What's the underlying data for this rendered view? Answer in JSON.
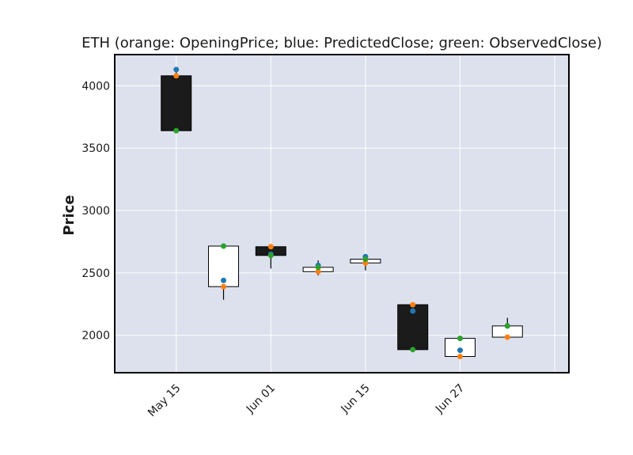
{
  "chart_data": {
    "type": "candlestick",
    "title": "ETH (orange: OpeningPrice; blue: PredictedClose; green: ObservedClose)",
    "ylabel": "Price",
    "xlabel": "",
    "ylim": [
      1700,
      4250
    ],
    "yticks": [
      2000,
      2500,
      3000,
      3500,
      4000
    ],
    "xticks": [
      {
        "label": "May 15",
        "index": 0
      },
      {
        "label": "Jun 01",
        "index": 2
      },
      {
        "label": "Jun 15",
        "index": 4
      },
      {
        "label": "Jun 27",
        "index": 6
      }
    ],
    "x_index_range": [
      -1.3,
      8.3
    ],
    "grid": true,
    "colors": {
      "background": "#dce1ed",
      "grid": "#ffffff",
      "up_body": "#ffffff",
      "down_body": "#1b1b1b",
      "opening": "#ff7f0e",
      "predicted": "#1f77b4",
      "observed": "#2ca02c"
    },
    "candles": [
      {
        "open": 4080,
        "high": 4120,
        "low": 3635,
        "close": 3640,
        "predicted": 4130,
        "observed": 3640
      },
      {
        "open": 2390,
        "high": 2715,
        "low": 2285,
        "close": 2715,
        "predicted": 2440,
        "observed": 2715
      },
      {
        "open": 2710,
        "high": 2730,
        "low": 2535,
        "close": 2640,
        "predicted": 2650,
        "observed": 2640
      },
      {
        "open": 2510,
        "high": 2600,
        "low": 2480,
        "close": 2545,
        "predicted": 2560,
        "observed": 2545
      },
      {
        "open": 2580,
        "high": 2630,
        "low": 2520,
        "close": 2610,
        "predicted": 2630,
        "observed": 2610
      },
      {
        "open": 2245,
        "high": 2250,
        "low": 1885,
        "close": 1885,
        "predicted": 2195,
        "observed": 1885
      },
      {
        "open": 1830,
        "high": 1975,
        "low": 1830,
        "close": 1975,
        "predicted": 1880,
        "observed": 1975
      },
      {
        "open": 1985,
        "high": 2140,
        "low": 1985,
        "close": 2075,
        "predicted": 2075,
        "observed": 2075
      }
    ]
  }
}
